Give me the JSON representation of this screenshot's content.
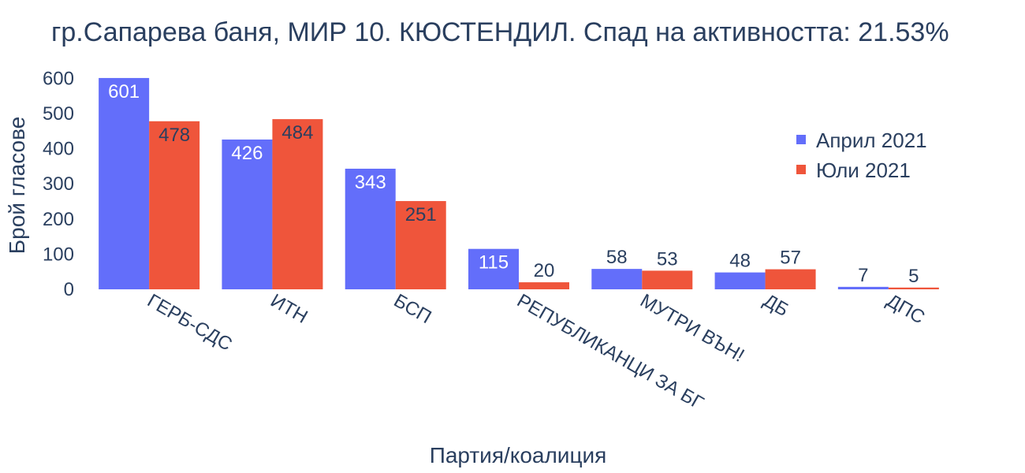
{
  "chart_data": {
    "type": "bar",
    "title": "гр.Сапарева баня, МИР 10. КЮСТЕНДИЛ. Спад на активността: 21.53%",
    "xlabel": "Партия/коалиция",
    "ylabel": "Брой гласове",
    "categories": [
      "ГЕРБ-СДС",
      "ИТН",
      "БСП",
      "РЕПУБЛИКАНЦИ ЗА БГ",
      "МУТРИ ВЪН!",
      "ДБ",
      "ДПС"
    ],
    "series": [
      {
        "name": "Април 2021",
        "values": [
          601,
          426,
          343,
          115,
          58,
          48,
          7
        ]
      },
      {
        "name": "Юли 2021",
        "values": [
          478,
          484,
          251,
          20,
          53,
          57,
          5
        ]
      }
    ],
    "ylim": [
      0,
      630
    ],
    "yticks": [
      0,
      100,
      200,
      300,
      400,
      500,
      600
    ],
    "grid": false,
    "legend_position": "top-right"
  },
  "colors": {
    "series": [
      "#636efa",
      "#ef553b"
    ],
    "text": "#2a3f5f"
  }
}
